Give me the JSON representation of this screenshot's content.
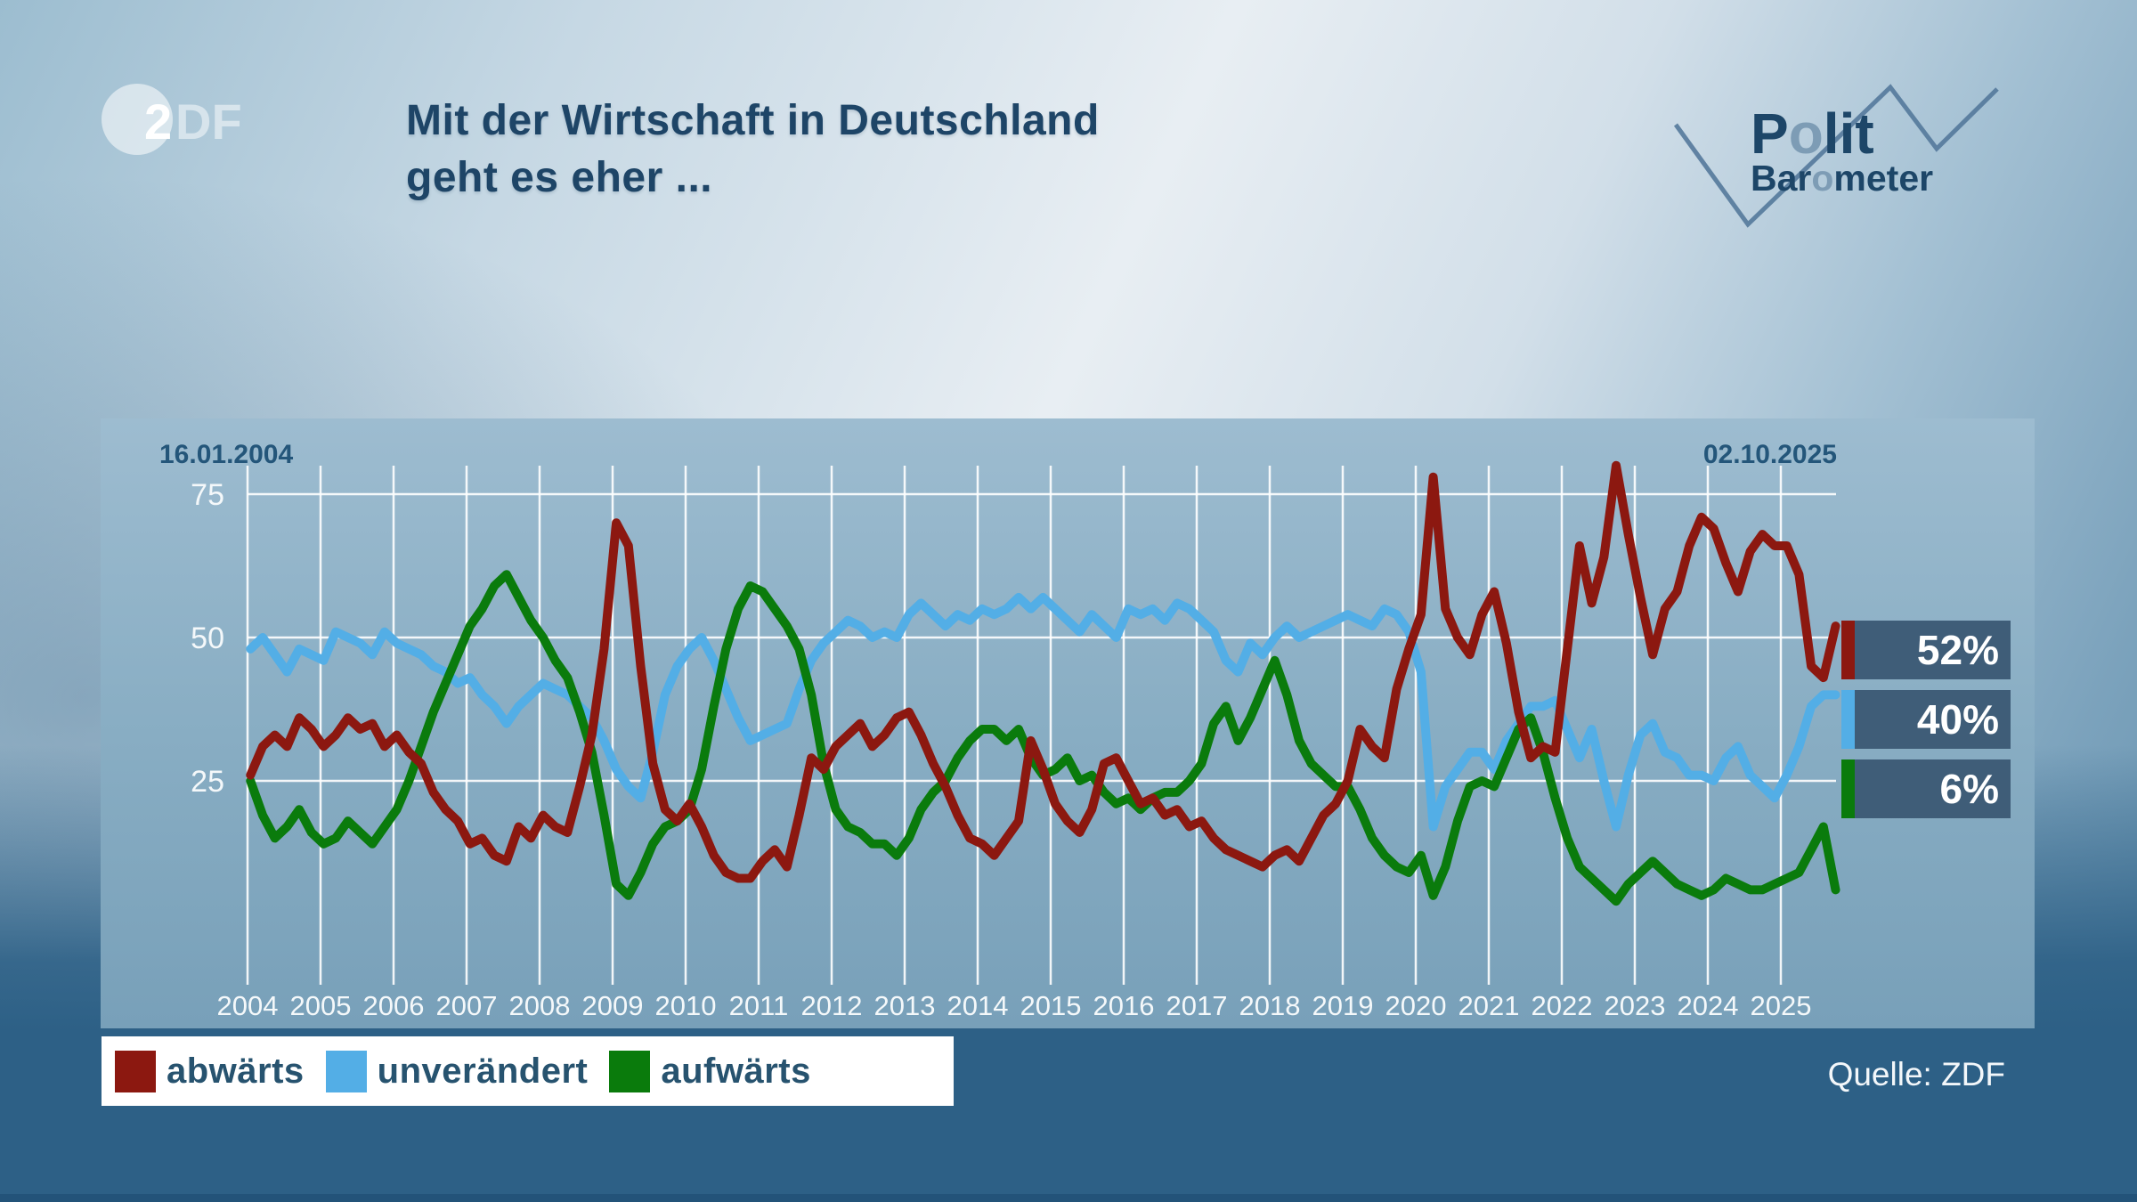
{
  "header": {
    "title_line1": "Mit der Wirtschaft in Deutschland",
    "title_line2": "geht es eher ...",
    "zdf_logo": {
      "two": "2",
      "df": "DF"
    },
    "brand": {
      "polit_p": "P",
      "polit_o": "o",
      "polit_lit": "lit",
      "baro_bar": "Bar",
      "baro_o": "o",
      "baro_meter": "meter"
    }
  },
  "source": "Quelle: ZDF",
  "colors": {
    "title_text": "#1e4567",
    "date_text": "#24567a",
    "legend_text": "#27536f",
    "badge_background": "#3f5d78",
    "band_background": "#2d6086",
    "panel_top": "#9dbcd0",
    "panel_bottom": "#78a0b9",
    "grid": "#ffffff",
    "abwaerts_red": "#8c1810",
    "unveraendert_blue": "#53aee6",
    "aufwaerts_green": "#0a7b0c"
  },
  "chart_data": {
    "type": "line",
    "title": "Mit der Wirtschaft in Deutschland geht es eher ...",
    "x_start_label": "16.01.2004",
    "x_end_label": "02.10.2025",
    "x_start_year": 2004.04,
    "x_end_year": 2025.75,
    "xlabel": "",
    "ylabel": "",
    "ylim": [
      0,
      80
    ],
    "grid": true,
    "legend_position": "bottom-left",
    "x_ticks": [
      "2004",
      "2005",
      "2006",
      "2007",
      "2008",
      "2009",
      "2010",
      "2011",
      "2012",
      "2013",
      "2014",
      "2015",
      "2016",
      "2017",
      "2018",
      "2019",
      "2020",
      "2021",
      "2022",
      "2023",
      "2024",
      "2025"
    ],
    "y_ticks": [
      25,
      50,
      75
    ],
    "series": [
      {
        "name": "abwärts",
        "color": "#8c1810",
        "current": "52%",
        "values": [
          26,
          31,
          33,
          31,
          36,
          34,
          31,
          33,
          36,
          34,
          35,
          31,
          33,
          30,
          28,
          23,
          20,
          18,
          14,
          15,
          12,
          11,
          17,
          15,
          19,
          17,
          16,
          24,
          33,
          48,
          70,
          66,
          45,
          28,
          20,
          18,
          21,
          17,
          12,
          9,
          8,
          8,
          11,
          13,
          10,
          19,
          29,
          27,
          31,
          33,
          35,
          31,
          33,
          36,
          37,
          33,
          28,
          24,
          19,
          15,
          14,
          12,
          15,
          18,
          32,
          27,
          21,
          18,
          16,
          20,
          28,
          29,
          25,
          21,
          22,
          19,
          20,
          17,
          18,
          15,
          13,
          12,
          11,
          10,
          12,
          13,
          11,
          15,
          19,
          21,
          25,
          34,
          31,
          29,
          41,
          48,
          54,
          78,
          55,
          50,
          47,
          54,
          58,
          49,
          37,
          29,
          31,
          30,
          48,
          66,
          56,
          64,
          80,
          68,
          57,
          47,
          55,
          58,
          66,
          71,
          69,
          63,
          58,
          65,
          68,
          66,
          66,
          61,
          45,
          43,
          52
        ]
      },
      {
        "name": "unverändert",
        "color": "#53aee6",
        "current": "40%",
        "values": [
          48,
          50,
          47,
          44,
          48,
          47,
          46,
          51,
          50,
          49,
          47,
          51,
          49,
          48,
          47,
          45,
          44,
          42,
          43,
          40,
          38,
          35,
          38,
          40,
          42,
          41,
          40,
          38,
          36,
          32,
          27,
          24,
          22,
          30,
          40,
          45,
          48,
          50,
          46,
          41,
          36,
          32,
          33,
          34,
          35,
          41,
          46,
          49,
          51,
          53,
          52,
          50,
          51,
          50,
          54,
          56,
          54,
          52,
          54,
          53,
          55,
          54,
          55,
          57,
          55,
          57,
          55,
          53,
          51,
          54,
          52,
          50,
          55,
          54,
          55,
          53,
          56,
          55,
          53,
          51,
          46,
          44,
          49,
          47,
          50,
          52,
          50,
          51,
          52,
          53,
          54,
          53,
          52,
          55,
          54,
          51,
          44,
          17,
          24,
          27,
          30,
          30,
          27,
          32,
          35,
          38,
          38,
          39,
          34,
          29,
          34,
          25,
          17,
          26,
          33,
          35,
          30,
          29,
          26,
          26,
          25,
          29,
          31,
          26,
          24,
          22,
          26,
          31,
          38,
          40,
          40
        ]
      },
      {
        "name": "aufwärts",
        "color": "#0a7b0c",
        "current": "6%",
        "values": [
          25,
          19,
          15,
          17,
          20,
          16,
          14,
          15,
          18,
          16,
          14,
          17,
          20,
          25,
          31,
          37,
          42,
          47,
          52,
          55,
          59,
          61,
          57,
          53,
          50,
          46,
          43,
          37,
          30,
          19,
          7,
          5,
          9,
          14,
          17,
          18,
          20,
          27,
          38,
          48,
          55,
          59,
          58,
          55,
          52,
          48,
          40,
          28,
          20,
          17,
          16,
          14,
          14,
          12,
          15,
          20,
          23,
          25,
          29,
          32,
          34,
          34,
          32,
          34,
          29,
          26,
          27,
          29,
          25,
          26,
          23,
          21,
          22,
          20,
          22,
          23,
          23,
          25,
          28,
          35,
          38,
          32,
          36,
          41,
          46,
          40,
          32,
          28,
          26,
          24,
          24,
          20,
          15,
          12,
          10,
          9,
          12,
          5,
          10,
          18,
          24,
          25,
          24,
          29,
          34,
          36,
          30,
          22,
          15,
          10,
          8,
          6,
          4,
          7,
          9,
          11,
          9,
          7,
          6,
          5,
          6,
          8,
          7,
          6,
          6,
          7,
          8,
          9,
          13,
          17,
          6
        ]
      }
    ]
  }
}
